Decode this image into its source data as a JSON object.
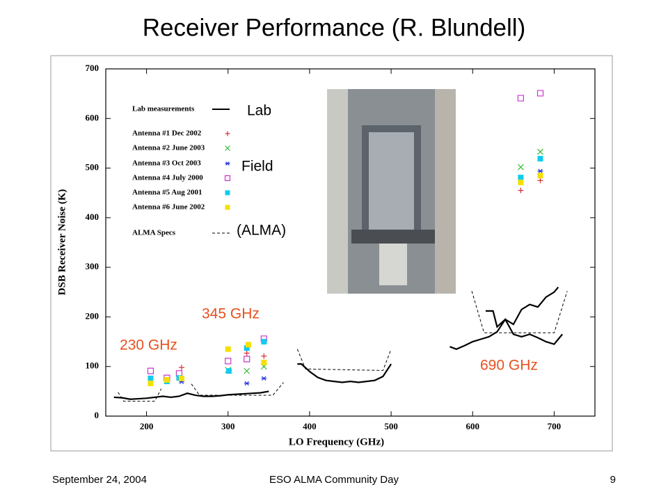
{
  "title": "Receiver Performance (R. Blundell)",
  "footer": {
    "date": "September 24, 2004",
    "event": "ESO ALMA Community Day",
    "page": "9"
  },
  "chart_data": {
    "type": "scatter",
    "x_label": "LO Frequency (GHz)",
    "y_label": "DSB Receiver Noise (K)",
    "xlim": [
      150,
      750
    ],
    "ylim": [
      0,
      700
    ],
    "xticks": [
      200,
      300,
      400,
      500,
      600,
      700
    ],
    "yticks": [
      0,
      100,
      200,
      300,
      400,
      500,
      600,
      700
    ],
    "series": [
      {
        "name": "Lab measurements",
        "style": "solid",
        "color": "#000000",
        "x": [
          160,
          170,
          180,
          190,
          200,
          210,
          220,
          230,
          240,
          250,
          260,
          270,
          280,
          290,
          300,
          310,
          320,
          330,
          340,
          350,
          null,
          385,
          390,
          400,
          410,
          420,
          430,
          440,
          450,
          460,
          470,
          480,
          490,
          500,
          null,
          572,
          580,
          590,
          600,
          610,
          620,
          630,
          640,
          650,
          660,
          670,
          680,
          690,
          700,
          710,
          null,
          616,
          625,
          630,
          640,
          650,
          660,
          670,
          680,
          690,
          700,
          705
        ],
        "values": [
          38,
          37,
          34,
          35,
          36,
          38,
          40,
          38,
          40,
          46,
          42,
          40,
          40,
          41,
          43,
          44,
          45,
          46,
          47,
          50,
          null,
          105,
          105,
          90,
          78,
          72,
          70,
          68,
          70,
          68,
          70,
          72,
          80,
          105,
          null,
          140,
          135,
          142,
          150,
          155,
          160,
          170,
          195,
          165,
          160,
          165,
          158,
          150,
          145,
          165,
          null,
          212,
          212,
          180,
          195,
          185,
          215,
          225,
          220,
          240,
          250,
          260
        ]
      },
      {
        "name": "Antenna #1 Dec 2002",
        "marker": "plus",
        "color": "#d4303a",
        "x": [
          243,
          323,
          344,
          659,
          683
        ],
        "values": [
          98,
          127,
          121,
          455,
          475
        ]
      },
      {
        "name": "Antenna #2 June 2003",
        "marker": "x",
        "color": "#33bb33",
        "x": [
          300,
          323,
          344,
          659,
          683
        ],
        "values": [
          93,
          91,
          100,
          502,
          533
        ]
      },
      {
        "name": "Antenna #3 Oct 2003",
        "marker": "asterisk",
        "color": "#2233dd",
        "x": [
          243,
          323,
          344,
          683
        ],
        "values": [
          69,
          66,
          76,
          494
        ]
      },
      {
        "name": "Antenna #4 July 2000",
        "marker": "square-open",
        "color": "#cc33cc",
        "x": [
          205,
          225,
          240,
          300,
          323,
          344,
          659,
          683
        ],
        "values": [
          91,
          77,
          86,
          111,
          115,
          156,
          641,
          651
        ]
      },
      {
        "name": "Antenna #5 Aug 2001",
        "marker": "square",
        "color": "#11ccee",
        "x": [
          205,
          225,
          240,
          301,
          323,
          344,
          659,
          683
        ],
        "values": [
          76,
          70,
          77,
          91,
          137,
          150,
          481,
          519
        ]
      },
      {
        "name": "Antenna #6 June 2002",
        "marker": "square",
        "color": "#f5e000",
        "x": [
          205,
          225,
          243,
          300,
          325,
          344,
          659,
          683
        ],
        "values": [
          66,
          73,
          76,
          135,
          144,
          108,
          471,
          485
        ]
      },
      {
        "name": "ALMA Specs",
        "style": "dashed",
        "color": "#000000",
        "x": [
          165,
          172,
          210,
          218,
          null,
          255,
          265,
          355,
          368,
          null,
          385,
          395,
          490,
          500,
          null,
          599,
          614,
          700,
          716
        ],
        "values": [
          48,
          30,
          30,
          55,
          null,
          65,
          42,
          42,
          68,
          null,
          135,
          95,
          92,
          135,
          null,
          252,
          168,
          168,
          252
        ]
      }
    ],
    "annotations": [
      {
        "text": "Lab",
        "color": "#000000"
      },
      {
        "text": "Field",
        "color": "#000000"
      },
      {
        "text": "(ALMA)",
        "color": "#000000"
      },
      {
        "text": "230 GHz",
        "color": "#e8501e"
      },
      {
        "text": "345 GHz",
        "color": "#e8501e"
      },
      {
        "text": "690 GHz",
        "color": "#e8501e"
      }
    ]
  }
}
